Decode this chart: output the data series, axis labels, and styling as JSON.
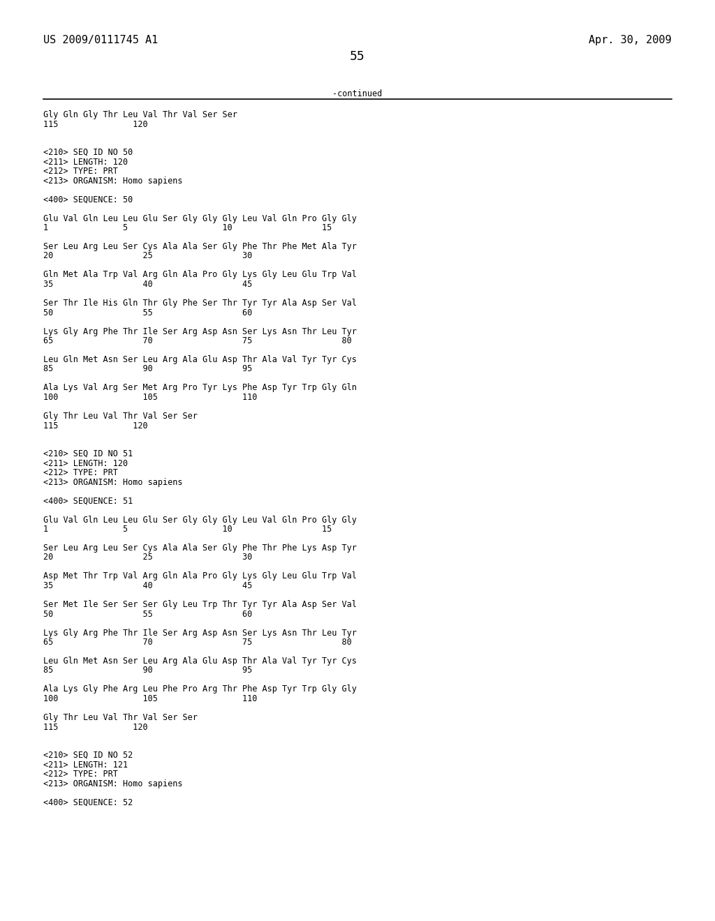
{
  "header_left": "US 2009/0111745 A1",
  "header_right": "Apr. 30, 2009",
  "page_number": "55",
  "continued_text": "-continued",
  "bg_color": "#ffffff",
  "text_color": "#000000",
  "font_size": 8.5,
  "mono_font": "DejaVu Sans Mono",
  "header_font_size": 11,
  "page_num_font_size": 13,
  "content_lines": [
    "Gly Gln Gly Thr Leu Val Thr Val Ser Ser",
    "115               120",
    "",
    "",
    "<210> SEQ ID NO 50",
    "<211> LENGTH: 120",
    "<212> TYPE: PRT",
    "<213> ORGANISM: Homo sapiens",
    "",
    "<400> SEQUENCE: 50",
    "",
    "Glu Val Gln Leu Leu Glu Ser Gly Gly Gly Leu Val Gln Pro Gly Gly",
    "1               5                   10                  15",
    "",
    "Ser Leu Arg Leu Ser Cys Ala Ala Ser Gly Phe Thr Phe Met Ala Tyr",
    "20                  25                  30",
    "",
    "Gln Met Ala Trp Val Arg Gln Ala Pro Gly Lys Gly Leu Glu Trp Val",
    "35                  40                  45",
    "",
    "Ser Thr Ile His Gln Thr Gly Phe Ser Thr Tyr Tyr Ala Asp Ser Val",
    "50                  55                  60",
    "",
    "Lys Gly Arg Phe Thr Ile Ser Arg Asp Asn Ser Lys Asn Thr Leu Tyr",
    "65                  70                  75                  80",
    "",
    "Leu Gln Met Asn Ser Leu Arg Ala Glu Asp Thr Ala Val Tyr Tyr Cys",
    "85                  90                  95",
    "",
    "Ala Lys Val Arg Ser Met Arg Pro Tyr Lys Phe Asp Tyr Trp Gly Gln",
    "100                 105                 110",
    "",
    "Gly Thr Leu Val Thr Val Ser Ser",
    "115               120",
    "",
    "",
    "<210> SEQ ID NO 51",
    "<211> LENGTH: 120",
    "<212> TYPE: PRT",
    "<213> ORGANISM: Homo sapiens",
    "",
    "<400> SEQUENCE: 51",
    "",
    "Glu Val Gln Leu Leu Glu Ser Gly Gly Gly Leu Val Gln Pro Gly Gly",
    "1               5                   10                  15",
    "",
    "Ser Leu Arg Leu Ser Cys Ala Ala Ser Gly Phe Thr Phe Lys Asp Tyr",
    "20                  25                  30",
    "",
    "Asp Met Thr Trp Val Arg Gln Ala Pro Gly Lys Gly Leu Glu Trp Val",
    "35                  40                  45",
    "",
    "Ser Met Ile Ser Ser Ser Gly Leu Trp Thr Tyr Tyr Ala Asp Ser Val",
    "50                  55                  60",
    "",
    "Lys Gly Arg Phe Thr Ile Ser Arg Asp Asn Ser Lys Asn Thr Leu Tyr",
    "65                  70                  75                  80",
    "",
    "Leu Gln Met Asn Ser Leu Arg Ala Glu Asp Thr Ala Val Tyr Tyr Cys",
    "85                  90                  95",
    "",
    "Ala Lys Gly Phe Arg Leu Phe Pro Arg Thr Phe Asp Tyr Trp Gly Gly",
    "100                 105                 110",
    "",
    "Gly Thr Leu Val Thr Val Ser Ser",
    "115               120",
    "",
    "",
    "<210> SEQ ID NO 52",
    "<211> LENGTH: 121",
    "<212> TYPE: PRT",
    "<213> ORGANISM: Homo sapiens",
    "",
    "<400> SEQUENCE: 52"
  ]
}
